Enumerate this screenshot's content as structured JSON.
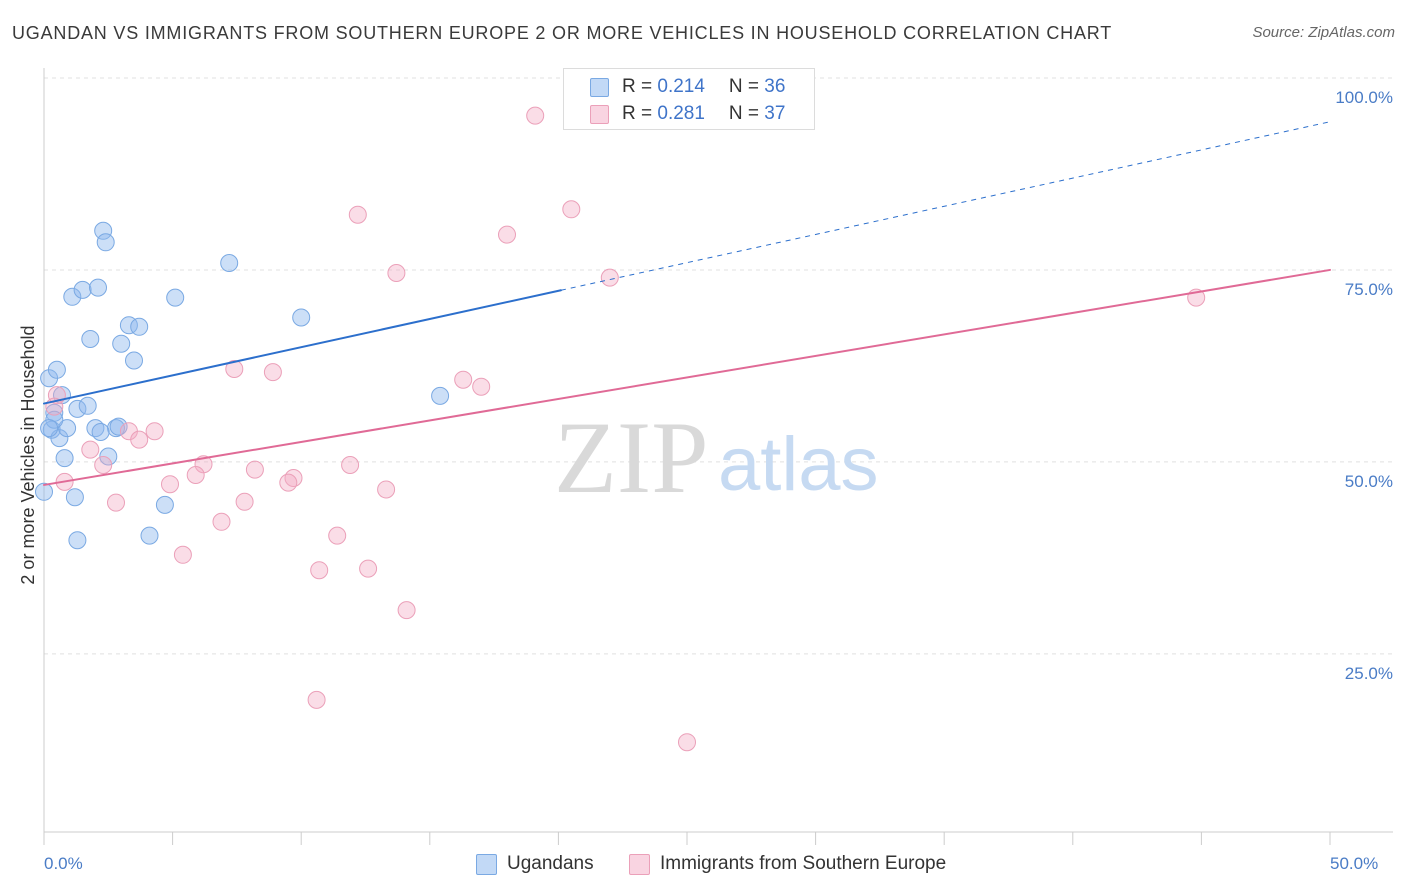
{
  "source": "Source: ZipAtlas.com",
  "watermark": {
    "zip": "ZIP",
    "atlas": "atlas"
  },
  "legend": {
    "r_label": "R = ",
    "n_label": "N = "
  },
  "colors": {
    "tick_label": "#4a7cc6",
    "grid": "#e0e0e0",
    "axis": "#cccccc",
    "watermark_zip": "#d9d9d9",
    "watermark_atlas": "#c6daf2"
  },
  "chart_data": {
    "type": "scatter",
    "title": "UGANDAN VS IMMIGRANTS FROM SOUTHERN EUROPE 2 OR MORE VEHICLES IN HOUSEHOLD CORRELATION CHART",
    "xlabel": "",
    "ylabel": "2 or more Vehicles in Household",
    "xlim": [
      0,
      52.45
    ],
    "ylim": [
      1.8,
      101.3
    ],
    "grid": true,
    "x_ticks": [
      {
        "value": 0,
        "label": "0.0%"
      },
      {
        "value": 50,
        "label": "50.0%"
      }
    ],
    "x_minor_ticks": [
      0,
      5,
      10,
      15,
      20,
      25,
      30,
      35,
      40,
      45,
      50
    ],
    "y_ticks": [
      {
        "value": 25,
        "label": "25.0%"
      },
      {
        "value": 50,
        "label": "50.0%"
      },
      {
        "value": 75,
        "label": "75.0%"
      },
      {
        "value": 100,
        "label": "100.0%"
      }
    ],
    "series": [
      {
        "name": "Ugandans",
        "r": "0.214",
        "n": "36",
        "fill": "rgba(143,185,238,0.45)",
        "stroke": "#7aa9e3",
        "line_color": "#2c6fcc",
        "trend": {
          "start": [
            0,
            57.6
          ],
          "end": [
            50,
            94.3
          ],
          "solid_until": 20.1
        },
        "points": [
          [
            0.0,
            46.1
          ],
          [
            0.2,
            60.9
          ],
          [
            0.5,
            62.0
          ],
          [
            0.4,
            56.4
          ],
          [
            0.3,
            54.2
          ],
          [
            0.7,
            58.7
          ],
          [
            0.6,
            53.1
          ],
          [
            0.8,
            50.5
          ],
          [
            1.1,
            71.5
          ],
          [
            1.5,
            72.4
          ],
          [
            1.2,
            45.4
          ],
          [
            1.3,
            39.8
          ],
          [
            1.3,
            56.9
          ],
          [
            1.7,
            57.3
          ],
          [
            1.8,
            66.0
          ],
          [
            2.1,
            72.7
          ],
          [
            2.0,
            54.4
          ],
          [
            0.9,
            54.4
          ],
          [
            2.3,
            80.1
          ],
          [
            2.4,
            78.6
          ],
          [
            2.5,
            50.7
          ],
          [
            2.8,
            54.4
          ],
          [
            2.9,
            54.6
          ],
          [
            3.0,
            65.4
          ],
          [
            3.3,
            67.8
          ],
          [
            3.7,
            67.6
          ],
          [
            3.5,
            63.2
          ],
          [
            4.1,
            40.4
          ],
          [
            4.7,
            44.4
          ],
          [
            5.1,
            71.4
          ],
          [
            7.2,
            75.9
          ],
          [
            10.0,
            68.8
          ],
          [
            15.4,
            58.6
          ],
          [
            2.2,
            53.9
          ],
          [
            0.4,
            55.5
          ],
          [
            0.2,
            54.4
          ]
        ]
      },
      {
        "name": "Immigrants from Southern Europe",
        "r": "0.281",
        "n": "37",
        "fill": "rgba(243,170,195,0.4)",
        "stroke": "#eba0b9",
        "line_color": "#e06a96",
        "trend": {
          "start": [
            0,
            47.0
          ],
          "end": [
            50,
            75.0
          ],
          "solid_until": 50
        },
        "points": [
          [
            19.1,
            95.1
          ],
          [
            20.5,
            82.9
          ],
          [
            18.0,
            79.6
          ],
          [
            12.2,
            82.2
          ],
          [
            13.7,
            74.6
          ],
          [
            22.0,
            74.0
          ],
          [
            44.8,
            71.4
          ],
          [
            7.4,
            62.1
          ],
          [
            8.9,
            61.7
          ],
          [
            16.3,
            60.7
          ],
          [
            17.0,
            59.8
          ],
          [
            0.5,
            58.7
          ],
          [
            0.4,
            57.2
          ],
          [
            1.8,
            51.6
          ],
          [
            2.3,
            49.6
          ],
          [
            3.3,
            54.0
          ],
          [
            3.7,
            52.9
          ],
          [
            4.3,
            54.0
          ],
          [
            6.2,
            49.7
          ],
          [
            5.9,
            48.3
          ],
          [
            4.9,
            47.1
          ],
          [
            8.2,
            49.0
          ],
          [
            9.7,
            47.9
          ],
          [
            9.5,
            47.3
          ],
          [
            11.9,
            49.6
          ],
          [
            13.3,
            46.4
          ],
          [
            0.8,
            47.4
          ],
          [
            2.8,
            44.7
          ],
          [
            7.8,
            44.8
          ],
          [
            6.9,
            42.2
          ],
          [
            11.4,
            40.4
          ],
          [
            5.4,
            37.9
          ],
          [
            10.7,
            35.9
          ],
          [
            12.6,
            36.1
          ],
          [
            14.1,
            30.7
          ],
          [
            10.6,
            19.0
          ],
          [
            25.0,
            13.5
          ]
        ]
      }
    ]
  }
}
